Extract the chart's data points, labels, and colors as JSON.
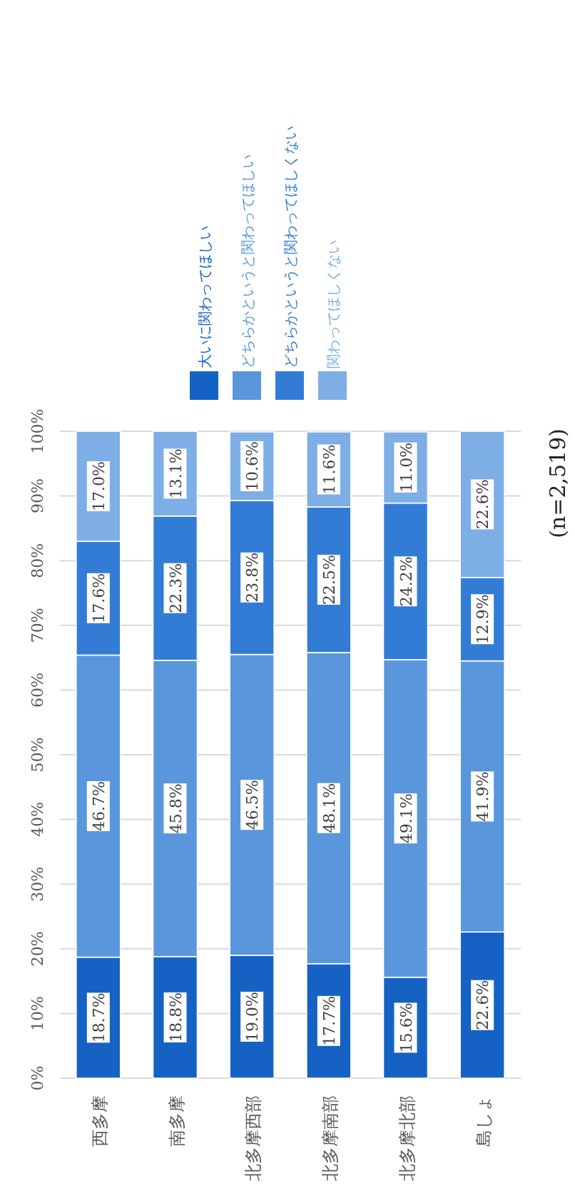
{
  "chart_data": {
    "type": "bar",
    "stacked": true,
    "categories": [
      "西多摩",
      "南多摩",
      "北多摩西部",
      "北多摩南部",
      "北多摩北部",
      "島しょ"
    ],
    "series": [
      {
        "name": "大いに関わってほしい",
        "color": "#1562c4",
        "values": [
          18.7,
          18.8,
          19.0,
          17.7,
          15.6,
          22.6
        ],
        "value_labels": [
          "18.7%",
          "18.8%",
          "19.0%",
          "17.7%",
          "15.6%",
          "22.6%"
        ]
      },
      {
        "name": "どちらかというと関わってほしい",
        "color": "#5a96dc",
        "values": [
          46.7,
          45.8,
          46.5,
          48.1,
          49.1,
          41.9
        ],
        "value_labels": [
          "46.7%",
          "45.8%",
          "46.5%",
          "48.1%",
          "49.1%",
          "41.9%"
        ]
      },
      {
        "name": "どちらかというと関わってほしくない",
        "color": "#327cd6",
        "values": [
          17.6,
          22.3,
          23.8,
          22.5,
          24.2,
          12.9
        ],
        "value_labels": [
          "17.6%",
          "22.3%",
          "23.8%",
          "22.5%",
          "24.2%",
          "12.9%"
        ]
      },
      {
        "name": "関わってほしくない",
        "color": "#7eaee6",
        "values": [
          17.0,
          13.1,
          10.6,
          11.6,
          11.0,
          22.6
        ],
        "value_labels": [
          "17.0%",
          "13.1%",
          "10.6%",
          "11.6%",
          "11.0%",
          "22.6%"
        ]
      }
    ],
    "ylim": [
      0,
      100
    ],
    "yticks": [
      {
        "value": 0,
        "label": "0%"
      },
      {
        "value": 10,
        "label": "10%"
      },
      {
        "value": 20,
        "label": "20%"
      },
      {
        "value": 30,
        "label": "30%"
      },
      {
        "value": 40,
        "label": "40%"
      },
      {
        "value": 50,
        "label": "50%"
      },
      {
        "value": 60,
        "label": "60%"
      },
      {
        "value": 70,
        "label": "70%"
      },
      {
        "value": 80,
        "label": "80%"
      },
      {
        "value": 90,
        "label": "90%"
      },
      {
        "value": 100,
        "label": "100%"
      }
    ],
    "grid": "y",
    "legend": "top",
    "annotations": [
      "(n=2,519)"
    ]
  }
}
